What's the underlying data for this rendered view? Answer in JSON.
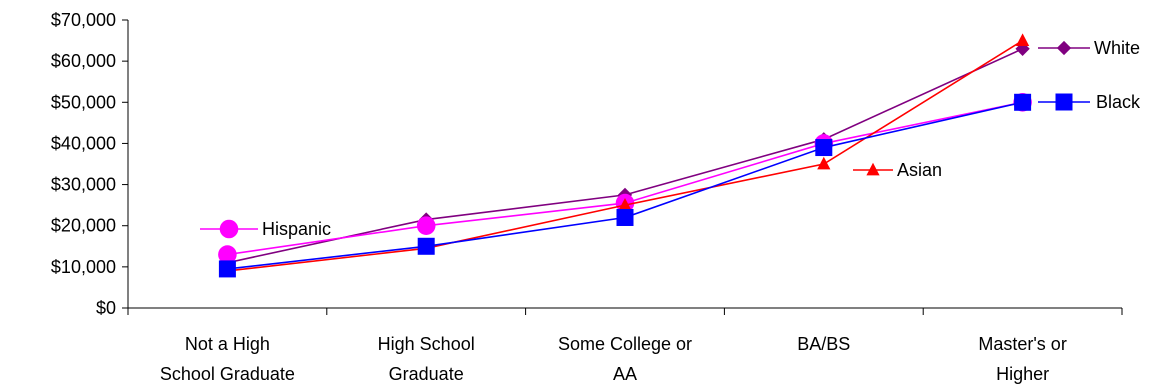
{
  "chart_data": {
    "type": "line",
    "title": "",
    "xlabel": "",
    "ylabel": "",
    "ylim": [
      0,
      70000
    ],
    "y_ticks": [
      "$0",
      "$10,000",
      "$20,000",
      "$30,000",
      "$40,000",
      "$50,000",
      "$60,000",
      "$70,000"
    ],
    "categories": [
      [
        "Not a High",
        "School Graduate"
      ],
      [
        "High School",
        "Graduate"
      ],
      [
        "Some College or",
        "AA"
      ],
      [
        "BA/BS"
      ],
      [
        "Master's or",
        "Higher"
      ]
    ],
    "grid": false,
    "legend": "inline labels at line ends",
    "series": [
      {
        "name": "White",
        "color": "#800080",
        "marker": "diamond",
        "values": [
          11000,
          21500,
          27500,
          41000,
          63000
        ]
      },
      {
        "name": "Hispanic",
        "color": "#FF00FF",
        "marker": "circle",
        "values": [
          13000,
          20000,
          25500,
          40000,
          50000
        ]
      },
      {
        "name": "Asian",
        "color": "#FF0000",
        "marker": "triangle",
        "values": [
          9000,
          14500,
          25000,
          35000,
          65000
        ]
      },
      {
        "name": "Black",
        "color": "#0000FF",
        "marker": "square",
        "values": [
          9500,
          15000,
          22000,
          39000,
          50000
        ]
      }
    ]
  }
}
